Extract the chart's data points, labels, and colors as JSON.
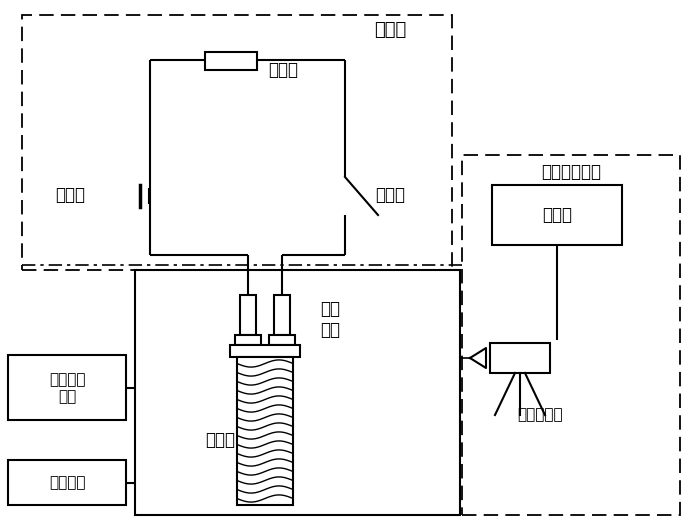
{
  "bg_color": "#ffffff",
  "line_color": "#000000",
  "labels": {
    "main_circuit": "主电路",
    "load_box": "负载箱",
    "dc_source": "直流源",
    "breaker": "断路器",
    "relay": "继电器",
    "dut": "被测\n电器",
    "signal_collect": "信号采集\n部分",
    "control_circuit": "控制回路",
    "image_collect": "图像采集部分",
    "upper_computer": "上位机",
    "high_speed_cam": "高速摄像机"
  },
  "font_size": 12,
  "font_size_label": 11
}
